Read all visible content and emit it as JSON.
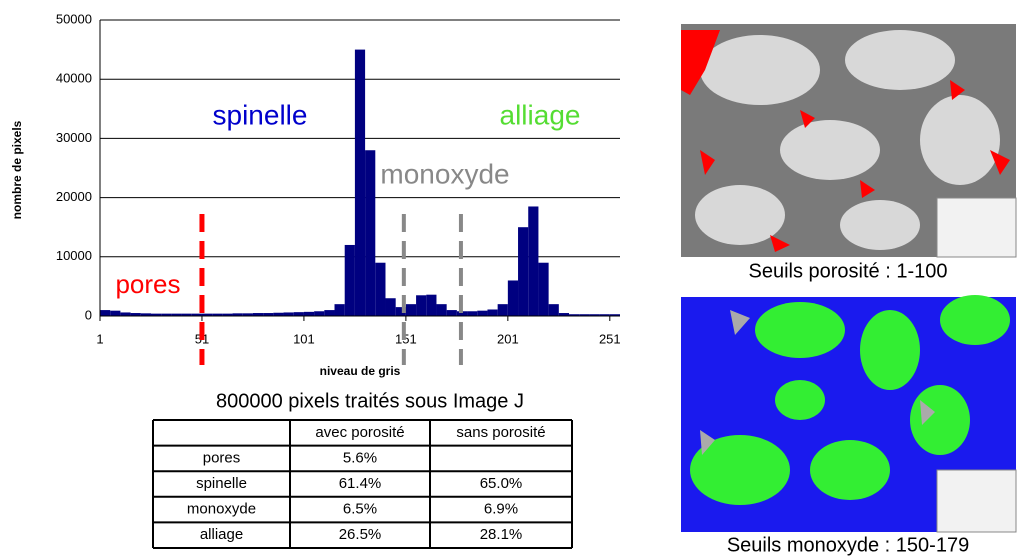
{
  "chart_data": {
    "type": "histogram",
    "y_label": "nombre de pixels",
    "x_label": "niveau de gris",
    "color": "#000080",
    "bins": [
      1,
      6,
      11,
      16,
      21,
      26,
      31,
      36,
      41,
      46,
      51,
      56,
      61,
      66,
      71,
      76,
      81,
      86,
      91,
      96,
      101,
      106,
      111,
      116,
      121,
      126,
      131,
      136,
      141,
      146,
      151,
      156,
      161,
      166,
      171,
      176,
      181,
      186,
      191,
      196,
      201,
      206,
      211,
      216,
      221,
      226,
      231,
      236,
      241,
      246,
      251,
      256
    ],
    "counts": [
      1000,
      900,
      600,
      500,
      450,
      400,
      400,
      400,
      400,
      400,
      400,
      400,
      400,
      450,
      450,
      500,
      500,
      550,
      600,
      650,
      700,
      800,
      1000,
      2000,
      12000,
      45000,
      28000,
      9000,
      3000,
      1500,
      2000,
      3500,
      3600,
      2000,
      1000,
      800,
      800,
      900,
      1100,
      2000,
      6000,
      15000,
      18500,
      9000,
      2000,
      500,
      300,
      300,
      300,
      300,
      300
    ],
    "xlim": [
      1,
      256
    ],
    "xticks": [
      1,
      51,
      101,
      151,
      201,
      251
    ],
    "ylim": [
      0,
      50000
    ],
    "yticks": [
      0,
      10000,
      20000,
      30000,
      40000,
      50000
    ],
    "grid": true,
    "annotations": [
      {
        "text": "spinelle",
        "color": "#0000cc"
      },
      {
        "text": "alliage",
        "color": "#55dd33"
      },
      {
        "text": "monoxyde",
        "color": "#888888"
      },
      {
        "text": "pores",
        "color": "#ff0000"
      }
    ],
    "thresholds": [
      {
        "x": 51,
        "color": "#ff0000"
      },
      {
        "x": 150,
        "color": "#888888"
      },
      {
        "x": 178,
        "color": "#888888"
      }
    ]
  },
  "table": {
    "title": "800000 pixels traités sous Image J",
    "columns": [
      "avec porosité",
      "sans porosité"
    ],
    "rows": [
      [
        "pores",
        "5.6%",
        null
      ],
      [
        "spinelle",
        "61.4%",
        "65.0%"
      ],
      [
        "monoxyde",
        "6.5%",
        "6.9%"
      ],
      [
        "alliage",
        "26.5%",
        "28.1%"
      ]
    ]
  },
  "images": [
    {
      "caption": "Seuils porosité : 1-100"
    },
    {
      "caption": "Seuils monoxyde : 150-179"
    }
  ]
}
